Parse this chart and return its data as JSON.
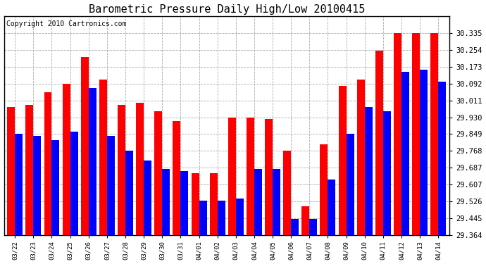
{
  "title": "Barometric Pressure Daily High/Low 20100415",
  "copyright": "Copyright 2010 Cartronics.com",
  "dates": [
    "03/22",
    "03/23",
    "03/24",
    "03/25",
    "03/26",
    "03/27",
    "03/28",
    "03/29",
    "03/30",
    "03/31",
    "04/01",
    "04/02",
    "04/03",
    "04/04",
    "04/05",
    "04/06",
    "04/07",
    "04/08",
    "04/09",
    "04/10",
    "04/11",
    "04/12",
    "04/13",
    "04/14"
  ],
  "highs": [
    29.98,
    29.99,
    30.05,
    30.09,
    30.22,
    30.11,
    29.99,
    30.0,
    29.96,
    29.91,
    29.66,
    29.66,
    29.93,
    29.93,
    29.92,
    29.77,
    29.5,
    29.8,
    30.08,
    30.11,
    30.25,
    30.335,
    30.335,
    30.335
  ],
  "lows": [
    29.85,
    29.84,
    29.82,
    29.86,
    30.07,
    29.84,
    29.77,
    29.72,
    29.68,
    29.67,
    29.53,
    29.53,
    29.54,
    29.68,
    29.68,
    29.44,
    29.44,
    29.63,
    29.85,
    29.98,
    29.96,
    30.15,
    30.16,
    30.1
  ],
  "ylim_min": 29.364,
  "ylim_max": 30.416,
  "yticks": [
    29.364,
    29.445,
    29.526,
    29.607,
    29.687,
    29.768,
    29.849,
    29.93,
    30.011,
    30.092,
    30.173,
    30.254,
    30.335
  ],
  "high_color": "#FF0000",
  "low_color": "#0000FF",
  "bg_color": "#FFFFFF",
  "grid_color": "#AAAAAA",
  "title_fontsize": 11,
  "copyright_fontsize": 7
}
